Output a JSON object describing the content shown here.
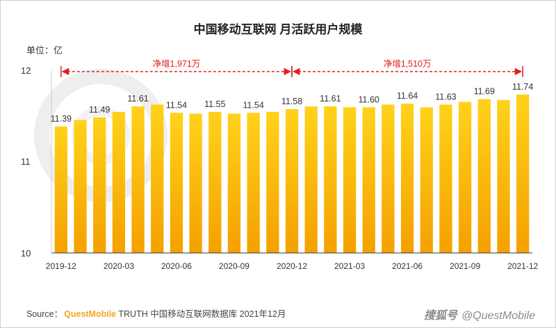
{
  "chart_data": {
    "type": "bar",
    "title": "中国移动互联网 月活跃用户规模",
    "unit_label": "单位：亿",
    "ylim": [
      10,
      12
    ],
    "y_ticks": [
      "10",
      "11",
      "12"
    ],
    "x_tick_labels": [
      "2019-12",
      "2020-03",
      "2020-06",
      "2020-09",
      "2020-12",
      "2021-03",
      "2021-06",
      "2021-09",
      "2021-12"
    ],
    "categories": [
      "2019-12",
      "2020-01",
      "2020-02",
      "2020-03",
      "2020-04",
      "2020-05",
      "2020-06",
      "2020-07",
      "2020-08",
      "2020-09",
      "2020-10",
      "2020-11",
      "2020-12",
      "2021-01",
      "2021-02",
      "2021-03",
      "2021-04",
      "2021-05",
      "2021-06",
      "2021-07",
      "2021-08",
      "2021-09",
      "2021-10",
      "2021-11",
      "2021-12"
    ],
    "values": [
      11.39,
      11.46,
      11.49,
      11.55,
      11.61,
      11.63,
      11.54,
      11.53,
      11.55,
      11.53,
      11.54,
      11.55,
      11.58,
      11.61,
      11.61,
      11.6,
      11.6,
      11.63,
      11.64,
      11.6,
      11.63,
      11.66,
      11.69,
      11.68,
      11.74
    ],
    "data_labels": [
      {
        "index": 0,
        "text": "11.39"
      },
      {
        "index": 2,
        "text": "11.49"
      },
      {
        "index": 4,
        "text": "11.61"
      },
      {
        "index": 6,
        "text": "11.54"
      },
      {
        "index": 8,
        "text": "11.55"
      },
      {
        "index": 10,
        "text": "11.54"
      },
      {
        "index": 12,
        "text": "11.58"
      },
      {
        "index": 14,
        "text": "11.61"
      },
      {
        "index": 16,
        "text": "11.60"
      },
      {
        "index": 18,
        "text": "11.64"
      },
      {
        "index": 20,
        "text": "11.63"
      },
      {
        "index": 22,
        "text": "11.69"
      },
      {
        "index": 24,
        "text": "11.74"
      }
    ],
    "annotations": [
      {
        "from_index": 0,
        "to_index": 12,
        "text": "净增1,971万"
      },
      {
        "from_index": 12,
        "to_index": 24,
        "text": "净增1,510万"
      }
    ],
    "colors": {
      "bar_top": "#ffd21a",
      "bar_bottom": "#f5a000",
      "annotation": "#e02020",
      "axis": "#333333"
    }
  },
  "footer": {
    "source_prefix": "Source：",
    "source_brand": "QuestMobile",
    "source_text": "TRUTH 中国移动互联网数据库 2021年12月"
  },
  "watermark": {
    "logo": "搜狐号",
    "handle": "@QuestMobile"
  }
}
